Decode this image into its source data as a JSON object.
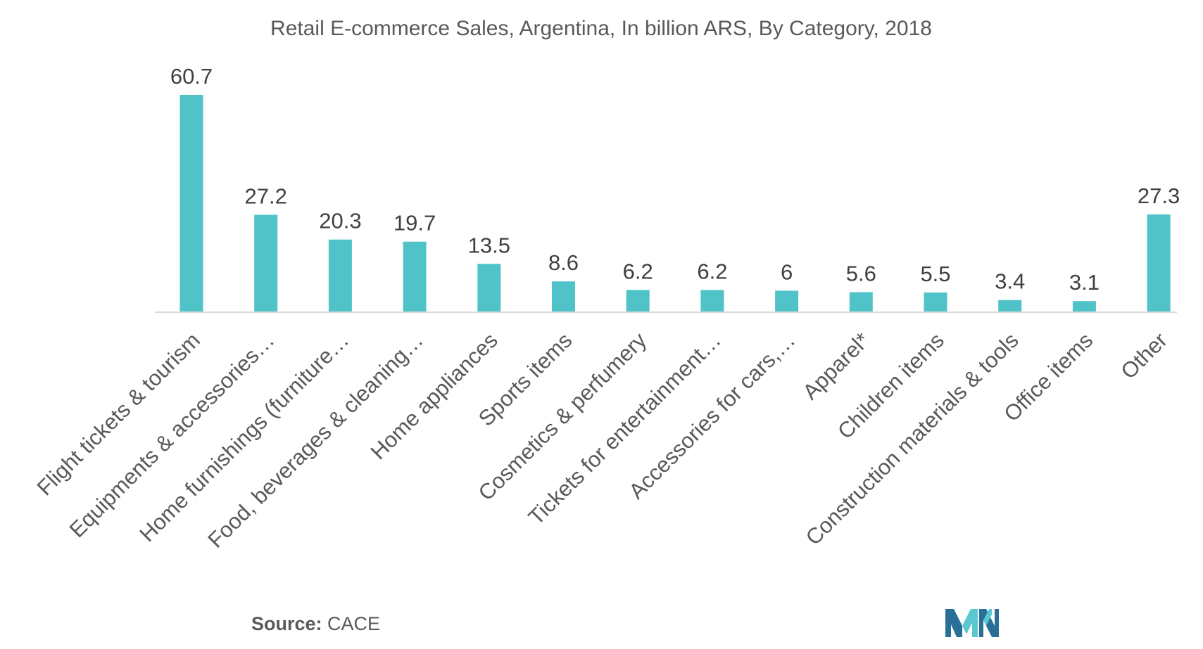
{
  "chart_data": {
    "type": "bar",
    "title": "Retail E-commerce Sales, Argentina, In billion ARS, By Category, 2018",
    "xlabel": "",
    "ylabel": "",
    "ylim": [
      0,
      65
    ],
    "grid": false,
    "legend": "none",
    "categories": [
      "Flight tickets & tourism",
      "Equipments & accessories…",
      "Home furnishings (furniture…",
      "Food, beverages & cleaning…",
      "Home appliances",
      "Sports items",
      "Cosmetics & perfumery",
      "Tickets for entertainment…",
      "Accessories for cars,…",
      "Apparel*",
      "Children items",
      "Construction materials & tools",
      "Office items",
      "Other"
    ],
    "values": [
      60.7,
      27.2,
      20.3,
      19.7,
      13.5,
      8.6,
      6.2,
      6.2,
      6,
      5.6,
      5.5,
      3.4,
      3.1,
      27.3
    ],
    "value_labels": [
      "60.7",
      "27.2",
      "20.3",
      "19.7",
      "13.5",
      "8.6",
      "6.2",
      "6.2",
      "6",
      "5.6",
      "5.5",
      "3.4",
      "3.1",
      "27.3"
    ]
  },
  "source": {
    "label": "Source:",
    "value": "CACE"
  },
  "colors": {
    "bar": "#4fc3c7",
    "axis": "#d9d9d9",
    "logo_dark": "#2a6f97",
    "logo_light": "#5bc8d0"
  },
  "logo": {
    "icon": "mordor-intelligence-logo-icon"
  }
}
